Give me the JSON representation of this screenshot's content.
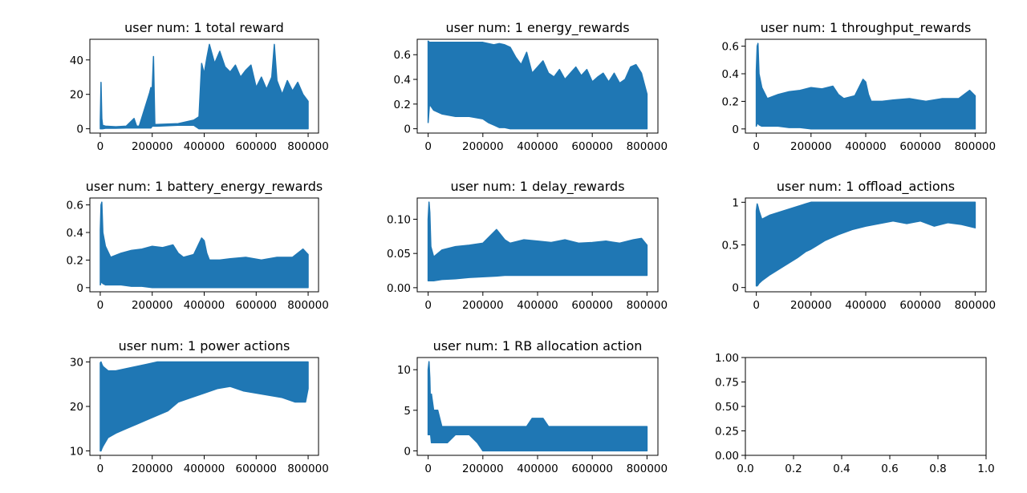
{
  "colors": {
    "series": "#1f77b4",
    "axes": "#000000",
    "background": "#ffffff"
  },
  "chart_data": [
    {
      "type": "area",
      "title": "user num: 1 total reward",
      "xticks": [
        0,
        200000,
        400000,
        600000,
        800000
      ],
      "yticks": [
        0,
        20,
        40
      ],
      "xlim": [
        -40000,
        840000
      ],
      "ylim": [
        -2.5,
        52
      ],
      "grid": false,
      "x": [
        0,
        3000,
        6000,
        9000,
        20000,
        60000,
        100000,
        130000,
        140000,
        150000,
        190000,
        195000,
        200000,
        205000,
        210000,
        220000,
        300000,
        360000,
        380000,
        390000,
        400000,
        410000,
        420000,
        440000,
        460000,
        480000,
        500000,
        520000,
        540000,
        560000,
        580000,
        600000,
        620000,
        640000,
        660000,
        670000,
        680000,
        700000,
        720000,
        740000,
        760000,
        780000,
        800000
      ],
      "y_max": [
        5,
        27,
        6,
        2,
        1.5,
        1.2,
        1.5,
        6,
        1.5,
        1.5,
        21,
        24,
        23,
        42,
        2.5,
        2.5,
        3,
        5,
        7,
        38,
        32,
        41,
        49,
        38,
        45,
        36,
        33,
        37,
        30,
        34,
        37,
        24,
        30,
        23,
        30,
        49,
        28,
        20,
        28,
        22,
        27,
        20,
        16
      ],
      "y_min": [
        0,
        0,
        0,
        0,
        0.3,
        0.3,
        0.5,
        0.5,
        0.5,
        0.5,
        0.5,
        0.5,
        1.5,
        1.5,
        1.5,
        1.5,
        2,
        2,
        0,
        0,
        0,
        0,
        0,
        0,
        0,
        0,
        0,
        0,
        0,
        0,
        0,
        0,
        0,
        0,
        0,
        0,
        0,
        0,
        0,
        0,
        0,
        0,
        0
      ]
    },
    {
      "type": "area",
      "title": "user num: 1 energy_rewards",
      "xticks": [
        0,
        200000,
        400000,
        600000,
        800000
      ],
      "yticks": [
        0.0,
        0.2,
        0.4,
        0.6
      ],
      "xlim": [
        -40000,
        840000
      ],
      "ylim": [
        -0.035,
        0.725
      ],
      "grid": false,
      "x": [
        0,
        5000,
        20000,
        50000,
        100000,
        150000,
        200000,
        220000,
        240000,
        260000,
        280000,
        300000,
        320000,
        340000,
        360000,
        380000,
        400000,
        420000,
        440000,
        460000,
        480000,
        500000,
        520000,
        540000,
        560000,
        580000,
        600000,
        620000,
        640000,
        660000,
        680000,
        700000,
        720000,
        740000,
        760000,
        780000,
        800000
      ],
      "y_max": [
        0.71,
        0.7,
        0.7,
        0.7,
        0.7,
        0.7,
        0.7,
        0.69,
        0.68,
        0.69,
        0.68,
        0.66,
        0.58,
        0.52,
        0.62,
        0.45,
        0.5,
        0.55,
        0.45,
        0.42,
        0.48,
        0.4,
        0.45,
        0.5,
        0.43,
        0.48,
        0.38,
        0.42,
        0.45,
        0.38,
        0.45,
        0.37,
        0.4,
        0.5,
        0.52,
        0.45,
        0.28
      ],
      "y_min": [
        0.05,
        0.2,
        0.15,
        0.12,
        0.1,
        0.1,
        0.08,
        0.05,
        0.03,
        0.01,
        0.01,
        0.0,
        0.0,
        0.0,
        0.0,
        0.0,
        0.0,
        0.0,
        0.0,
        0.0,
        0.0,
        0.0,
        0.0,
        0.0,
        0.0,
        0.0,
        0.0,
        0.0,
        0.0,
        0.0,
        0.0,
        0.0,
        0.0,
        0.0,
        0.0,
        0.0,
        0.0
      ]
    },
    {
      "type": "area",
      "title": "user num: 1 throughput_rewards",
      "xticks": [
        0,
        200000,
        400000,
        600000,
        800000
      ],
      "yticks": [
        0.0,
        0.2,
        0.4,
        0.6
      ],
      "xlim": [
        -40000,
        840000
      ],
      "ylim": [
        -0.03,
        0.65
      ],
      "grid": false,
      "x": [
        0,
        3000,
        6000,
        10000,
        20000,
        40000,
        80000,
        120000,
        160000,
        200000,
        240000,
        280000,
        300000,
        320000,
        360000,
        380000,
        390000,
        400000,
        410000,
        420000,
        460000,
        500000,
        560000,
        620000,
        680000,
        740000,
        780000,
        800000
      ],
      "y_max": [
        0.42,
        0.6,
        0.62,
        0.4,
        0.3,
        0.22,
        0.25,
        0.27,
        0.28,
        0.3,
        0.29,
        0.31,
        0.25,
        0.22,
        0.24,
        0.32,
        0.36,
        0.34,
        0.25,
        0.2,
        0.2,
        0.21,
        0.22,
        0.2,
        0.22,
        0.22,
        0.28,
        0.24
      ],
      "y_min": [
        0.02,
        0.04,
        0.04,
        0.03,
        0.02,
        0.02,
        0.02,
        0.01,
        0.01,
        0.0,
        0.0,
        0.0,
        0.0,
        0.0,
        0.0,
        0.0,
        0.0,
        0.0,
        0.0,
        0.0,
        0.0,
        0.0,
        0.0,
        0.0,
        0.0,
        0.0,
        0.0,
        0.0
      ]
    },
    {
      "type": "area",
      "title": "user num: 1 battery_energy_rewards",
      "xticks": [
        0,
        200000,
        400000,
        600000,
        800000
      ],
      "yticks": [
        0.0,
        0.2,
        0.4,
        0.6
      ],
      "xlim": [
        -40000,
        840000
      ],
      "ylim": [
        -0.03,
        0.65
      ],
      "grid": false,
      "x": [
        0,
        3000,
        6000,
        10000,
        20000,
        40000,
        80000,
        120000,
        160000,
        200000,
        240000,
        280000,
        300000,
        320000,
        360000,
        380000,
        390000,
        400000,
        410000,
        420000,
        460000,
        500000,
        560000,
        620000,
        680000,
        740000,
        780000,
        800000
      ],
      "y_max": [
        0.42,
        0.6,
        0.62,
        0.4,
        0.3,
        0.22,
        0.25,
        0.27,
        0.28,
        0.3,
        0.29,
        0.31,
        0.25,
        0.22,
        0.24,
        0.32,
        0.36,
        0.34,
        0.25,
        0.2,
        0.2,
        0.21,
        0.22,
        0.2,
        0.22,
        0.22,
        0.28,
        0.24
      ],
      "y_min": [
        0.02,
        0.04,
        0.04,
        0.03,
        0.02,
        0.02,
        0.02,
        0.01,
        0.01,
        0.0,
        0.0,
        0.0,
        0.0,
        0.0,
        0.0,
        0.0,
        0.0,
        0.0,
        0.0,
        0.0,
        0.0,
        0.0,
        0.0,
        0.0,
        0.0,
        0.0,
        0.0,
        0.0
      ]
    },
    {
      "type": "area",
      "title": "user num: 1 delay_rewards",
      "xticks": [
        0,
        200000,
        400000,
        600000,
        800000
      ],
      "yticks": [
        0.0,
        0.05,
        0.1
      ],
      "tick_labels_y": [
        "0.00",
        "0.05",
        "0.10"
      ],
      "xlim": [
        -40000,
        840000
      ],
      "ylim": [
        -0.006,
        0.131
      ],
      "grid": false,
      "x": [
        0,
        3000,
        6000,
        10000,
        20000,
        50000,
        100000,
        150000,
        200000,
        250000,
        280000,
        300000,
        350000,
        400000,
        450000,
        500000,
        550000,
        600000,
        650000,
        700000,
        750000,
        780000,
        800000
      ],
      "y_max": [
        0.1,
        0.125,
        0.11,
        0.06,
        0.045,
        0.055,
        0.06,
        0.062,
        0.065,
        0.085,
        0.07,
        0.065,
        0.07,
        0.068,
        0.066,
        0.07,
        0.065,
        0.066,
        0.068,
        0.065,
        0.07,
        0.072,
        0.062
      ],
      "y_min": [
        0.01,
        0.01,
        0.01,
        0.01,
        0.01,
        0.012,
        0.013,
        0.015,
        0.016,
        0.017,
        0.018,
        0.018,
        0.018,
        0.018,
        0.018,
        0.018,
        0.018,
        0.018,
        0.018,
        0.018,
        0.018,
        0.018,
        0.018
      ]
    },
    {
      "type": "area",
      "title": "user num: 1 offload_actions",
      "xticks": [
        0,
        200000,
        400000,
        600000,
        800000
      ],
      "yticks": [
        0.0,
        0.5,
        1.0
      ],
      "xlim": [
        -40000,
        840000
      ],
      "ylim": [
        -0.05,
        1.05
      ],
      "grid": false,
      "x": [
        0,
        3000,
        6000,
        10000,
        20000,
        50000,
        100000,
        150000,
        180000,
        200000,
        250000,
        300000,
        350000,
        400000,
        450000,
        500000,
        550000,
        600000,
        650000,
        700000,
        750000,
        800000
      ],
      "y_max": [
        0.9,
        0.98,
        0.95,
        0.9,
        0.8,
        0.85,
        0.9,
        0.95,
        0.98,
        1.0,
        1.0,
        1.0,
        1.0,
        1.0,
        1.0,
        1.0,
        1.0,
        1.0,
        1.0,
        1.0,
        1.0,
        1.0
      ],
      "y_min": [
        0.02,
        0.02,
        0.03,
        0.05,
        0.08,
        0.15,
        0.25,
        0.35,
        0.42,
        0.45,
        0.55,
        0.62,
        0.68,
        0.72,
        0.75,
        0.78,
        0.75,
        0.78,
        0.72,
        0.76,
        0.74,
        0.7
      ]
    },
    {
      "type": "area",
      "title": "user num: 1 power actions",
      "xticks": [
        0,
        200000,
        400000,
        600000,
        800000
      ],
      "yticks": [
        10,
        20,
        30
      ],
      "xlim": [
        -40000,
        840000
      ],
      "ylim": [
        9.0,
        31.0
      ],
      "grid": false,
      "x": [
        0,
        3000,
        6000,
        10000,
        30000,
        60000,
        100000,
        140000,
        180000,
        220000,
        260000,
        300000,
        350000,
        400000,
        450000,
        500000,
        550000,
        600000,
        650000,
        700000,
        750000,
        790000,
        800000
      ],
      "y_max": [
        29.8,
        30,
        29.5,
        29,
        28,
        28,
        28.5,
        29,
        29.5,
        30,
        30,
        30,
        30,
        30,
        30,
        30,
        30,
        30,
        30,
        30,
        30,
        30,
        30
      ],
      "y_min": [
        10,
        10,
        10.5,
        11,
        13,
        14,
        15,
        16,
        17,
        18,
        19,
        21,
        22,
        23,
        24,
        24.5,
        23.5,
        23,
        22.5,
        22,
        21,
        21,
        24
      ]
    },
    {
      "type": "area",
      "title": "user num: 1 RB allocation action",
      "xticks": [
        0,
        200000,
        400000,
        600000,
        800000
      ],
      "yticks": [
        0,
        5,
        10
      ],
      "xlim": [
        -40000,
        840000
      ],
      "ylim": [
        -0.55,
        11.5
      ],
      "grid": false,
      "x": [
        0,
        3000,
        6000,
        9000,
        12000,
        20000,
        35000,
        50000,
        70000,
        100000,
        150000,
        180000,
        200000,
        250000,
        300000,
        340000,
        360000,
        380000,
        400000,
        420000,
        440000,
        500000,
        600000,
        700000,
        720000,
        740000,
        800000
      ],
      "y_max": [
        10,
        11,
        9,
        5,
        7,
        5,
        5,
        3,
        3,
        3,
        3,
        3,
        3,
        3,
        3,
        3,
        3,
        4,
        4,
        4,
        3,
        3,
        3,
        3,
        3,
        3,
        3
      ],
      "y_min": [
        2,
        2,
        2,
        2,
        1,
        1,
        1,
        1,
        1,
        2,
        2,
        1,
        0,
        0,
        0,
        0,
        0,
        0,
        0,
        0,
        0,
        0,
        0,
        0,
        0,
        0,
        0
      ]
    },
    {
      "type": "empty",
      "title": "",
      "xticks": [
        0.0,
        0.2,
        0.4,
        0.6,
        0.8,
        1.0
      ],
      "yticks": [
        0.0,
        0.25,
        0.5,
        0.75,
        1.0
      ],
      "tick_labels_x": [
        "0.0",
        "0.2",
        "0.4",
        "0.6",
        "0.8",
        "1.0"
      ],
      "tick_labels_y": [
        "0.00",
        "0.25",
        "0.50",
        "0.75",
        "1.00"
      ],
      "xlim": [
        0,
        1
      ],
      "ylim": [
        0,
        1
      ],
      "grid": false
    }
  ]
}
